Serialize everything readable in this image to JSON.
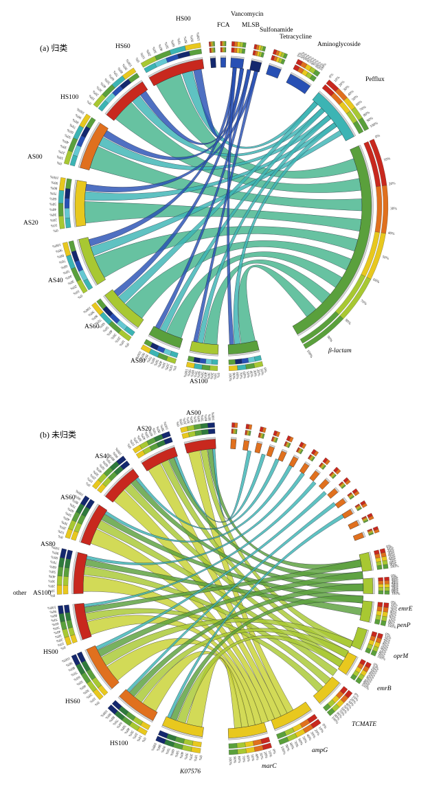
{
  "colors": {
    "red": "#c8281e",
    "orange": "#e0701e",
    "yellow": "#e8c81e",
    "lime": "#a8c832",
    "green": "#5aa03c",
    "teal": "#3cb4b4",
    "cyan": "#64c8d2",
    "blue": "#2850b4",
    "navy": "#14286e",
    "ribbon_a": "#46b48c",
    "ribbon_b": "#c8d232"
  },
  "tick_labels": [
    "0%",
    "10%",
    "20%",
    "30%",
    "40%",
    "50%",
    "60%",
    "70%",
    "80%",
    "90%",
    "100%"
  ],
  "panel_a": {
    "title": "(a) 归类",
    "samples": [
      "HS00",
      "HS60",
      "HS100",
      "AS00",
      "AS20",
      "AS40",
      "AS60",
      "AS80",
      "AS100"
    ],
    "categories": [
      "FCA",
      "Vancomycin",
      "MLSB",
      "Sulfonamide",
      "Tetracycline",
      "Aminoglycoside",
      "Pefflux",
      "β-lactam"
    ]
  },
  "panel_b": {
    "title": "(b) 未归类",
    "samples": [
      "AS00",
      "AS20",
      "AS40",
      "AS60",
      "AS80",
      "AS100",
      "HS00",
      "HS60",
      "HS100"
    ],
    "other_label": "other",
    "genes": [
      "emrE",
      "penP",
      "oprM",
      "emrB",
      "TCMATE",
      "ampG",
      "marC",
      "K07576"
    ]
  }
}
